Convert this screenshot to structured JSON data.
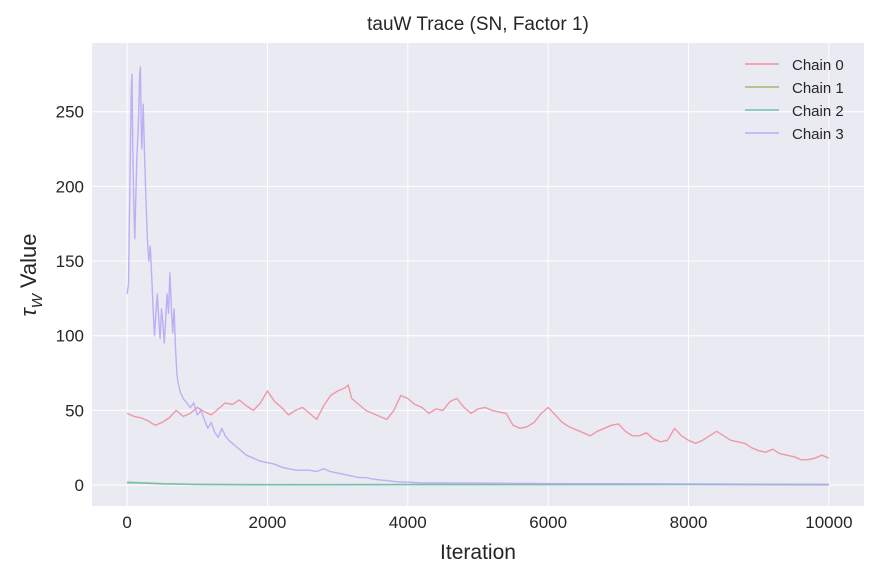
{
  "chart_data": {
    "type": "line",
    "title": "tauW Trace (SN, Factor 1)",
    "xlabel": "Iteration",
    "ylabel_symbol": "τ",
    "ylabel_subscript": "W",
    "ylabel_text": "Value",
    "xlim": [
      -500,
      10500
    ],
    "ylim": [
      -14,
      296
    ],
    "x_ticks": [
      0,
      2000,
      4000,
      6000,
      8000,
      10000
    ],
    "y_ticks": [
      0,
      50,
      100,
      150,
      200,
      250
    ],
    "grid": true,
    "legend_position": "top-right",
    "series": [
      {
        "name": "Chain 0",
        "color": "#f28e9c",
        "points": [
          [
            0,
            48
          ],
          [
            100,
            46
          ],
          [
            200,
            45
          ],
          [
            300,
            43
          ],
          [
            400,
            40
          ],
          [
            500,
            42
          ],
          [
            600,
            45
          ],
          [
            700,
            50
          ],
          [
            800,
            46
          ],
          [
            900,
            48
          ],
          [
            1000,
            52
          ],
          [
            1100,
            49
          ],
          [
            1200,
            47
          ],
          [
            1300,
            51
          ],
          [
            1400,
            55
          ],
          [
            1500,
            54
          ],
          [
            1600,
            57
          ],
          [
            1700,
            53
          ],
          [
            1800,
            50
          ],
          [
            1900,
            55
          ],
          [
            2000,
            63
          ],
          [
            2100,
            56
          ],
          [
            2200,
            52
          ],
          [
            2300,
            47
          ],
          [
            2400,
            50
          ],
          [
            2500,
            52
          ],
          [
            2600,
            48
          ],
          [
            2700,
            44
          ],
          [
            2800,
            53
          ],
          [
            2900,
            60
          ],
          [
            3000,
            63
          ],
          [
            3100,
            65
          ],
          [
            3150,
            67
          ],
          [
            3200,
            58
          ],
          [
            3300,
            54
          ],
          [
            3400,
            50
          ],
          [
            3500,
            48
          ],
          [
            3600,
            46
          ],
          [
            3700,
            44
          ],
          [
            3800,
            50
          ],
          [
            3900,
            60
          ],
          [
            4000,
            58
          ],
          [
            4100,
            54
          ],
          [
            4200,
            52
          ],
          [
            4300,
            48
          ],
          [
            4400,
            51
          ],
          [
            4500,
            50
          ],
          [
            4600,
            56
          ],
          [
            4700,
            58
          ],
          [
            4800,
            52
          ],
          [
            4900,
            48
          ],
          [
            5000,
            51
          ],
          [
            5100,
            52
          ],
          [
            5200,
            50
          ],
          [
            5300,
            49
          ],
          [
            5400,
            48
          ],
          [
            5500,
            40
          ],
          [
            5600,
            38
          ],
          [
            5700,
            39
          ],
          [
            5800,
            42
          ],
          [
            5900,
            48
          ],
          [
            6000,
            52
          ],
          [
            6100,
            47
          ],
          [
            6200,
            42
          ],
          [
            6300,
            39
          ],
          [
            6400,
            37
          ],
          [
            6500,
            35
          ],
          [
            6600,
            33
          ],
          [
            6700,
            36
          ],
          [
            6800,
            38
          ],
          [
            6900,
            40
          ],
          [
            7000,
            41
          ],
          [
            7100,
            36
          ],
          [
            7200,
            33
          ],
          [
            7300,
            33
          ],
          [
            7400,
            35
          ],
          [
            7500,
            31
          ],
          [
            7600,
            29
          ],
          [
            7700,
            30
          ],
          [
            7800,
            38
          ],
          [
            7900,
            33
          ],
          [
            8000,
            30
          ],
          [
            8100,
            28
          ],
          [
            8200,
            30
          ],
          [
            8300,
            33
          ],
          [
            8400,
            36
          ],
          [
            8500,
            33
          ],
          [
            8600,
            30
          ],
          [
            8700,
            29
          ],
          [
            8800,
            28
          ],
          [
            8900,
            25
          ],
          [
            9000,
            23
          ],
          [
            9100,
            22
          ],
          [
            9200,
            24
          ],
          [
            9300,
            21
          ],
          [
            9400,
            20
          ],
          [
            9500,
            19
          ],
          [
            9600,
            17
          ],
          [
            9700,
            17
          ],
          [
            9800,
            18
          ],
          [
            9900,
            20
          ],
          [
            10000,
            18
          ]
        ]
      },
      {
        "name": "Chain 1",
        "color": "#a3b86c",
        "points": [
          [
            0,
            2
          ],
          [
            200,
            1.6
          ],
          [
            500,
            1
          ],
          [
            1000,
            0.5
          ],
          [
            2000,
            0.3
          ],
          [
            4000,
            0.4
          ],
          [
            6000,
            0.4
          ],
          [
            8000,
            0.5
          ],
          [
            10000,
            0.4
          ]
        ]
      },
      {
        "name": "Chain 2",
        "color": "#6cc0b5",
        "points": [
          [
            0,
            1.5
          ],
          [
            200,
            1.4
          ],
          [
            500,
            0.8
          ],
          [
            1000,
            0.4
          ],
          [
            2000,
            0.2
          ],
          [
            4000,
            0.3
          ],
          [
            6000,
            0.3
          ],
          [
            8000,
            0.3
          ],
          [
            10000,
            0.2
          ]
        ]
      },
      {
        "name": "Chain 3",
        "color": "#b8a9f5",
        "points": [
          [
            0,
            128
          ],
          [
            20,
            135
          ],
          [
            40,
            200
          ],
          [
            60,
            265
          ],
          [
            70,
            275
          ],
          [
            80,
            230
          ],
          [
            90,
            200
          ],
          [
            100,
            180
          ],
          [
            110,
            165
          ],
          [
            120,
            185
          ],
          [
            140,
            220
          ],
          [
            160,
            240
          ],
          [
            180,
            275
          ],
          [
            190,
            280
          ],
          [
            200,
            245
          ],
          [
            210,
            225
          ],
          [
            230,
            255
          ],
          [
            250,
            220
          ],
          [
            270,
            190
          ],
          [
            290,
            165
          ],
          [
            310,
            150
          ],
          [
            330,
            160
          ],
          [
            350,
            140
          ],
          [
            370,
            118
          ],
          [
            390,
            100
          ],
          [
            410,
            115
          ],
          [
            430,
            128
          ],
          [
            450,
            112
          ],
          [
            470,
            98
          ],
          [
            490,
            118
          ],
          [
            510,
            108
          ],
          [
            530,
            95
          ],
          [
            550,
            112
          ],
          [
            570,
            128
          ],
          [
            590,
            115
          ],
          [
            610,
            142
          ],
          [
            630,
            120
          ],
          [
            650,
            102
          ],
          [
            670,
            118
          ],
          [
            690,
            92
          ],
          [
            710,
            74
          ],
          [
            730,
            68
          ],
          [
            760,
            62
          ],
          [
            800,
            58
          ],
          [
            850,
            55
          ],
          [
            900,
            52
          ],
          [
            950,
            55
          ],
          [
            1000,
            47
          ],
          [
            1050,
            50
          ],
          [
            1100,
            44
          ],
          [
            1150,
            38
          ],
          [
            1200,
            42
          ],
          [
            1250,
            35
          ],
          [
            1300,
            32
          ],
          [
            1350,
            38
          ],
          [
            1400,
            33
          ],
          [
            1450,
            30
          ],
          [
            1500,
            28
          ],
          [
            1550,
            26
          ],
          [
            1600,
            24
          ],
          [
            1700,
            20
          ],
          [
            1800,
            18
          ],
          [
            1900,
            16
          ],
          [
            2000,
            15
          ],
          [
            2100,
            14
          ],
          [
            2200,
            12
          ],
          [
            2300,
            11
          ],
          [
            2400,
            10
          ],
          [
            2500,
            10
          ],
          [
            2600,
            10
          ],
          [
            2700,
            9
          ],
          [
            2800,
            11
          ],
          [
            2900,
            9
          ],
          [
            3000,
            8
          ],
          [
            3100,
            7
          ],
          [
            3200,
            6
          ],
          [
            3300,
            5
          ],
          [
            3400,
            5
          ],
          [
            3500,
            4
          ],
          [
            3600,
            3.5
          ],
          [
            3700,
            3
          ],
          [
            3800,
            2.5
          ],
          [
            3900,
            2
          ],
          [
            4000,
            2
          ],
          [
            4200,
            1.5
          ],
          [
            4500,
            1.5
          ],
          [
            5000,
            1.3
          ],
          [
            5500,
            1.2
          ],
          [
            6000,
            1
          ],
          [
            7000,
            0.9
          ],
          [
            8000,
            0.8
          ],
          [
            9000,
            0.6
          ],
          [
            10000,
            0.5
          ]
        ]
      }
    ]
  }
}
